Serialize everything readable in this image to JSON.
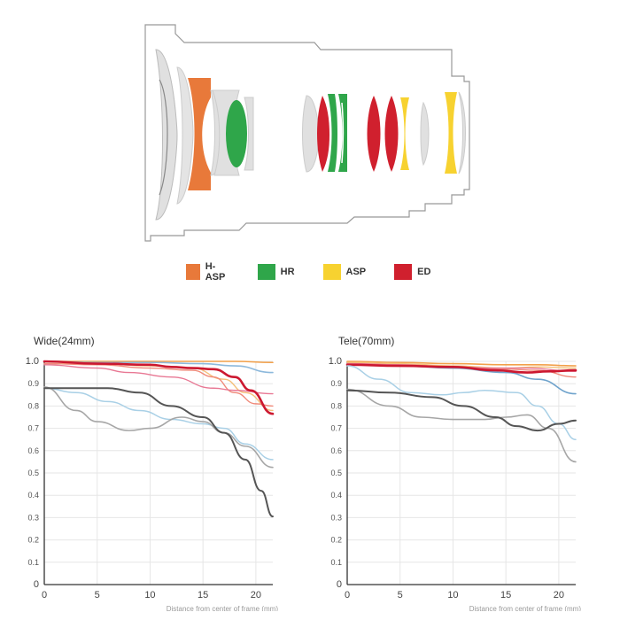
{
  "legend": [
    {
      "label": "H-ASP",
      "color": "#e8793a"
    },
    {
      "label": "HR",
      "color": "#2fa64a"
    },
    {
      "label": "ASP",
      "color": "#f7d230"
    },
    {
      "label": "ED",
      "color": "#d0202e"
    }
  ],
  "chart_data": [
    {
      "type": "line",
      "title": "Wide(24mm)",
      "xlabel": "Distance from center of frame (mm)",
      "ylabel": "",
      "xlim": [
        0,
        21.6
      ],
      "ylim": [
        0,
        1.0
      ],
      "xticks": [
        0,
        5,
        10,
        15,
        20
      ],
      "yticks": [
        0,
        0.1,
        0.2,
        0.3,
        0.4,
        0.5,
        0.6,
        0.7,
        0.8,
        0.9,
        1.0
      ],
      "ytick_labels": [
        "0",
        "0.1",
        "0.2",
        "0.3",
        "0.4",
        "0.5",
        "0.6",
        "0.7",
        "0.8",
        "0.9",
        "1.0"
      ],
      "grid": true,
      "series": [
        {
          "color": "#f2a04a",
          "width": 1.6,
          "points": [
            [
              0,
              1.0
            ],
            [
              5,
              1.0
            ],
            [
              10,
              1.0
            ],
            [
              15,
              1.0
            ],
            [
              18,
              1.0
            ],
            [
              21.6,
              0.995
            ]
          ]
        },
        {
          "color": "#8db9dc",
          "width": 1.6,
          "points": [
            [
              0,
              1.0
            ],
            [
              5,
              0.995
            ],
            [
              10,
              0.995
            ],
            [
              15,
              0.99
            ],
            [
              18,
              0.98
            ],
            [
              21.6,
              0.95
            ]
          ]
        },
        {
          "color": "#f4c07a",
          "width": 1.4,
          "points": [
            [
              0,
              0.99
            ],
            [
              5,
              0.99
            ],
            [
              10,
              0.98
            ],
            [
              14,
              0.97
            ],
            [
              17,
              0.92
            ],
            [
              19,
              0.86
            ],
            [
              21.6,
              0.78
            ]
          ]
        },
        {
          "color": "#f08a7a",
          "width": 1.4,
          "points": [
            [
              0,
              0.99
            ],
            [
              5,
              0.985
            ],
            [
              10,
              0.97
            ],
            [
              14,
              0.96
            ],
            [
              16,
              0.93
            ],
            [
              18,
              0.86
            ],
            [
              20,
              0.81
            ],
            [
              21.6,
              0.8
            ]
          ]
        },
        {
          "color": "#e87894",
          "width": 1.4,
          "points": [
            [
              0,
              0.985
            ],
            [
              5,
              0.97
            ],
            [
              8,
              0.95
            ],
            [
              12,
              0.93
            ],
            [
              16,
              0.88
            ],
            [
              18,
              0.87
            ],
            [
              21.6,
              0.855
            ]
          ]
        },
        {
          "color": "#cc1830",
          "width": 2.6,
          "points": [
            [
              0,
              1.0
            ],
            [
              5,
              0.99
            ],
            [
              10,
              0.985
            ],
            [
              12,
              0.975
            ],
            [
              14,
              0.97
            ],
            [
              16,
              0.965
            ],
            [
              18,
              0.93
            ],
            [
              19.5,
              0.87
            ],
            [
              21.6,
              0.765
            ]
          ]
        },
        {
          "color": "#a9d0e6",
          "width": 1.5,
          "points": [
            [
              0,
              0.88
            ],
            [
              3,
              0.86
            ],
            [
              6,
              0.82
            ],
            [
              9,
              0.78
            ],
            [
              12,
              0.74
            ],
            [
              15,
              0.72
            ],
            [
              17,
              0.7
            ],
            [
              19,
              0.63
            ],
            [
              21.6,
              0.56
            ]
          ]
        },
        {
          "color": "#a6a6a6",
          "width": 1.6,
          "points": [
            [
              0,
              0.885
            ],
            [
              3,
              0.78
            ],
            [
              5,
              0.73
            ],
            [
              8,
              0.69
            ],
            [
              10,
              0.7
            ],
            [
              13,
              0.75
            ],
            [
              15,
              0.73
            ],
            [
              17,
              0.68
            ],
            [
              19,
              0.62
            ],
            [
              21.6,
              0.525
            ]
          ]
        },
        {
          "color": "#555555",
          "width": 2.0,
          "points": [
            [
              0,
              0.88
            ],
            [
              3,
              0.88
            ],
            [
              6,
              0.88
            ],
            [
              9,
              0.86
            ],
            [
              12,
              0.8
            ],
            [
              15,
              0.75
            ],
            [
              17,
              0.68
            ],
            [
              19,
              0.56
            ],
            [
              20.5,
              0.42
            ],
            [
              21.6,
              0.305
            ]
          ]
        }
      ]
    },
    {
      "type": "line",
      "title": "Tele(70mm)",
      "xlabel": "Distance from center of frame (mm)",
      "ylabel": "",
      "xlim": [
        0,
        21.6
      ],
      "ylim": [
        0,
        1.0
      ],
      "xticks": [
        0,
        5,
        10,
        15,
        20
      ],
      "yticks": [
        0,
        0.1,
        0.2,
        0.3,
        0.4,
        0.5,
        0.6,
        0.7,
        0.8,
        0.9,
        1.0
      ],
      "ytick_labels": [
        "0",
        "0.1",
        "0.2",
        "0.3",
        "0.4",
        "0.5",
        "0.6",
        "0.7",
        "0.8",
        "0.9",
        "1.0"
      ],
      "grid": true,
      "series": [
        {
          "color": "#f2a04a",
          "width": 1.6,
          "points": [
            [
              0,
              1.0
            ],
            [
              5,
              0.995
            ],
            [
              10,
              0.99
            ],
            [
              15,
              0.985
            ],
            [
              18,
              0.985
            ],
            [
              21.6,
              0.98
            ]
          ]
        },
        {
          "color": "#f4c07a",
          "width": 1.4,
          "points": [
            [
              0,
              0.995
            ],
            [
              5,
              0.99
            ],
            [
              10,
              0.98
            ],
            [
              15,
              0.97
            ],
            [
              18,
              0.975
            ],
            [
              21.6,
              0.97
            ]
          ]
        },
        {
          "color": "#f08a7a",
          "width": 1.4,
          "points": [
            [
              0,
              0.99
            ],
            [
              5,
              0.985
            ],
            [
              10,
              0.975
            ],
            [
              15,
              0.965
            ],
            [
              18,
              0.96
            ],
            [
              21.6,
              0.93
            ]
          ]
        },
        {
          "color": "#e87894",
          "width": 1.4,
          "points": [
            [
              0,
              0.99
            ],
            [
              5,
              0.985
            ],
            [
              10,
              0.975
            ],
            [
              14,
              0.97
            ],
            [
              17,
              0.97
            ],
            [
              21.6,
              0.955
            ]
          ]
        },
        {
          "color": "#6fa3cc",
          "width": 1.6,
          "points": [
            [
              0,
              0.985
            ],
            [
              5,
              0.98
            ],
            [
              10,
              0.97
            ],
            [
              15,
              0.95
            ],
            [
              18,
              0.92
            ],
            [
              21.6,
              0.855
            ]
          ]
        },
        {
          "color": "#cc1830",
          "width": 2.6,
          "points": [
            [
              0,
              0.985
            ],
            [
              5,
              0.98
            ],
            [
              10,
              0.975
            ],
            [
              14,
              0.96
            ],
            [
              17,
              0.95
            ],
            [
              19,
              0.955
            ],
            [
              21.6,
              0.96
            ]
          ]
        },
        {
          "color": "#a9d0e6",
          "width": 1.5,
          "points": [
            [
              0,
              0.98
            ],
            [
              3,
              0.92
            ],
            [
              6,
              0.86
            ],
            [
              9,
              0.85
            ],
            [
              11,
              0.86
            ],
            [
              13,
              0.87
            ],
            [
              16,
              0.86
            ],
            [
              18,
              0.8
            ],
            [
              20,
              0.72
            ],
            [
              21.6,
              0.65
            ]
          ]
        },
        {
          "color": "#a6a6a6",
          "width": 1.6,
          "points": [
            [
              0,
              0.875
            ],
            [
              4,
              0.8
            ],
            [
              7,
              0.75
            ],
            [
              10,
              0.74
            ],
            [
              13,
              0.74
            ],
            [
              15,
              0.75
            ],
            [
              17,
              0.76
            ],
            [
              19,
              0.7
            ],
            [
              21.6,
              0.55
            ]
          ]
        },
        {
          "color": "#555555",
          "width": 2.0,
          "points": [
            [
              0,
              0.87
            ],
            [
              4,
              0.86
            ],
            [
              8,
              0.84
            ],
            [
              11,
              0.8
            ],
            [
              14,
              0.75
            ],
            [
              16,
              0.71
            ],
            [
              18,
              0.69
            ],
            [
              20,
              0.72
            ],
            [
              21.6,
              0.735
            ]
          ]
        }
      ]
    }
  ]
}
